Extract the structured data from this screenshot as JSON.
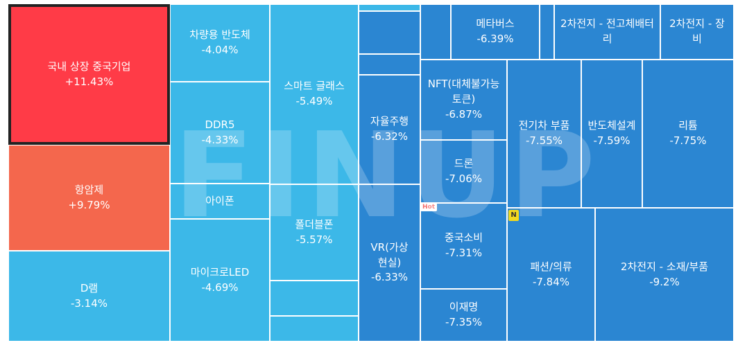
{
  "chart_data": {
    "type": "treemap",
    "watermark": "FINUP",
    "colors": {
      "up_strong": "#ff3b47",
      "up": "#f4674d",
      "light_down": "#3cb8e8",
      "down": "#2b86d2",
      "border": "#ffffff",
      "selected_border": "#222222"
    },
    "tiles": [
      {
        "name": "국내 상장 중국기업",
        "change": "+11.43%",
        "value": 11.43,
        "color": "up_strong",
        "selected": true
      },
      {
        "name": "항암제",
        "change": "+9.79%",
        "value": 9.79,
        "color": "up"
      },
      {
        "name": "D램",
        "change": "-3.14%",
        "value": -3.14,
        "color": "light_down"
      },
      {
        "name": "차량용 반도체",
        "change": "-4.04%",
        "value": -4.04,
        "color": "light_down"
      },
      {
        "name": "DDR5",
        "change": "-4.33%",
        "value": -4.33,
        "color": "light_down"
      },
      {
        "name": "아이폰",
        "change": "",
        "value": null,
        "color": "light_down"
      },
      {
        "name": "마이크로LED",
        "change": "-4.69%",
        "value": -4.69,
        "color": "light_down"
      },
      {
        "name": "스마트 글래스",
        "change": "-5.49%",
        "value": -5.49,
        "color": "light_down"
      },
      {
        "name": "폴더블폰",
        "change": "-5.57%",
        "value": -5.57,
        "color": "light_down"
      },
      {
        "name": "자율주행",
        "change": "-6.32%",
        "value": -6.32,
        "color": "down"
      },
      {
        "name": "VR(가상 현실)",
        "change": "-6.33%",
        "value": -6.33,
        "color": "down"
      },
      {
        "name": "메타버스",
        "change": "-6.39%",
        "value": -6.39,
        "color": "down"
      },
      {
        "name": "2차전지 - 전고체배터리",
        "change": "",
        "value": null,
        "color": "down"
      },
      {
        "name": "2차전지 - 장비",
        "change": "",
        "value": null,
        "color": "down"
      },
      {
        "name": "NFT(대체불가능토큰)",
        "change": "-6.87%",
        "value": -6.87,
        "color": "down"
      },
      {
        "name": "드론",
        "change": "-7.06%",
        "value": -7.06,
        "color": "down"
      },
      {
        "name": "중국소비",
        "change": "-7.31%",
        "value": -7.31,
        "color": "down",
        "badge": "Hot"
      },
      {
        "name": "이재명",
        "change": "-7.35%",
        "value": -7.35,
        "color": "down"
      },
      {
        "name": "전기차 부품",
        "change": "-7.55%",
        "value": -7.55,
        "color": "down"
      },
      {
        "name": "반도체설계",
        "change": "-7.59%",
        "value": -7.59,
        "color": "down"
      },
      {
        "name": "리튬",
        "change": "-7.75%",
        "value": -7.75,
        "color": "down"
      },
      {
        "name": "패션/의류",
        "change": "-7.84%",
        "value": -7.84,
        "color": "down",
        "badge": "N"
      },
      {
        "name": "2차전지 - 소재/부품",
        "change": "-9.2%",
        "value": -9.2,
        "color": "down"
      },
      {
        "name": "",
        "change": "",
        "value": null,
        "color": "light_down"
      },
      {
        "name": "",
        "change": "",
        "value": null,
        "color": "light_down"
      },
      {
        "name": "",
        "change": "",
        "value": null,
        "color": "light_down"
      },
      {
        "name": "",
        "change": "",
        "value": null,
        "color": "light_down"
      },
      {
        "name": "",
        "change": "",
        "value": null,
        "color": "down"
      },
      {
        "name": "",
        "change": "",
        "value": null,
        "color": "down"
      },
      {
        "name": "",
        "change": "",
        "value": null,
        "color": "down"
      },
      {
        "name": "",
        "change": "",
        "value": null,
        "color": "down"
      }
    ]
  }
}
